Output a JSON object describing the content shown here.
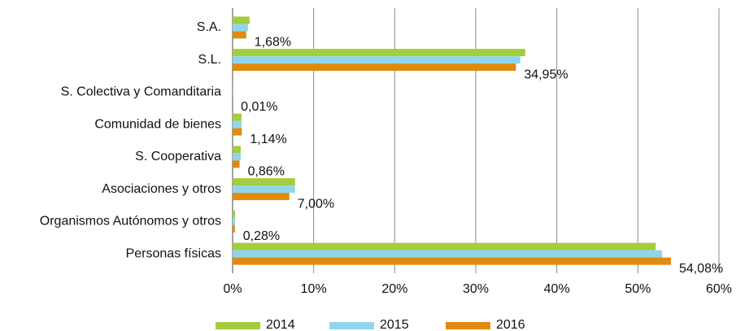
{
  "chart_data": {
    "type": "hbar",
    "categories": [
      "S.A.",
      "S.L.",
      "S. Colectiva y Comanditaria",
      "Comunidad de bienes",
      "S. Cooperativa",
      "Asociaciones y otros",
      "Organismos Autónomos y otros",
      "Personas físicas"
    ],
    "series": [
      {
        "name": "2014",
        "color": "#a4cc3c",
        "values": [
          2.1,
          36.1,
          0.02,
          1.1,
          1.0,
          7.7,
          0.3,
          52.2
        ]
      },
      {
        "name": "2015",
        "color": "#8fd6ec",
        "values": [
          1.9,
          35.5,
          0.02,
          1.1,
          1.0,
          7.7,
          0.3,
          53.0
        ]
      },
      {
        "name": "2016",
        "color": "#e08a0f",
        "values": [
          1.68,
          34.95,
          0.01,
          1.14,
          0.86,
          7.0,
          0.28,
          54.08
        ],
        "value_labels": [
          "1,68%",
          "34,95%",
          "0,01%",
          "1,14%",
          "0,86%",
          "7,00%",
          "0,28%",
          "54,08%"
        ]
      }
    ],
    "xlim": [
      0,
      60
    ],
    "xticks": [
      {
        "value": 0,
        "label": "0%"
      },
      {
        "value": 10,
        "label": "10%"
      },
      {
        "value": 20,
        "label": "20%"
      },
      {
        "value": 30,
        "label": "30%"
      },
      {
        "value": 40,
        "label": "40%"
      },
      {
        "value": 50,
        "label": "50%"
      },
      {
        "value": 60,
        "label": "60%"
      }
    ],
    "grid": true,
    "legend": "bottom"
  }
}
